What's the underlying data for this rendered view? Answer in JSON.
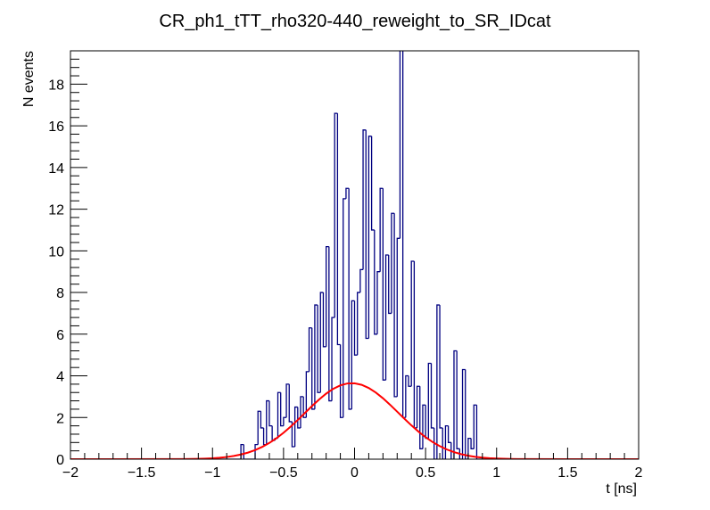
{
  "chart_data": {
    "type": "histogram",
    "title": "CR_ph1_tTT_rho320-440_reweight_to_SR_IDcat",
    "xlabel": "t [ns]",
    "ylabel": "N events",
    "color": "#000080",
    "bins": [
      -2,
      -1.98,
      -1.96,
      -1.94,
      -1.92,
      -1.9,
      -1.88,
      -1.86,
      -1.84,
      -1.82,
      -1.8,
      -1.78,
      -1.76,
      -1.74,
      -1.72,
      -1.7,
      -1.68,
      -1.66,
      -1.64,
      -1.62,
      -1.6,
      -1.58,
      -1.56,
      -1.54,
      -1.52,
      -1.5,
      -1.48,
      -1.46,
      -1.44,
      -1.42,
      -1.4,
      -1.38,
      -1.36,
      -1.34,
      -1.32,
      -1.3,
      -1.28,
      -1.26,
      -1.24,
      -1.22,
      -1.2,
      -1.18,
      -1.16,
      -1.14,
      -1.12,
      -1.1,
      -1.08,
      -1.06,
      -1.04,
      -1.02,
      -1,
      -0.98,
      -0.96,
      -0.94,
      -0.92,
      -0.9,
      -0.88,
      -0.86,
      -0.84,
      -0.82,
      -0.8,
      -0.78,
      -0.76,
      -0.74,
      -0.72,
      -0.7,
      -0.68,
      -0.66,
      -0.64,
      -0.62,
      -0.6,
      -0.58,
      -0.56,
      -0.54,
      -0.52,
      -0.5,
      -0.48,
      -0.46,
      -0.44,
      -0.42,
      -0.4,
      -0.38,
      -0.36,
      -0.34,
      -0.32,
      -0.3,
      -0.28,
      -0.26,
      -0.24,
      -0.22,
      -0.2,
      -0.18,
      -0.16,
      -0.14,
      -0.12,
      -0.1,
      -0.08,
      -0.06,
      -0.04,
      -0.02,
      0,
      0.02,
      0.04,
      0.06,
      0.08,
      0.1,
      0.12,
      0.14,
      0.16,
      0.18,
      0.2,
      0.22,
      0.24,
      0.26,
      0.28,
      0.3,
      0.32,
      0.34,
      0.36,
      0.38,
      0.4,
      0.42,
      0.44,
      0.46,
      0.48,
      0.5,
      0.52,
      0.54,
      0.56,
      0.58,
      0.6,
      0.62,
      0.64,
      0.66,
      0.68,
      0.7,
      0.72,
      0.74,
      0.76,
      0.78,
      0.8,
      0.82,
      0.84,
      0.86,
      0.88,
      0.9,
      0.92,
      0.94,
      0.96,
      0.98,
      1,
      1.02,
      1.04,
      1.06,
      1.08,
      1.1,
      1.12,
      1.14,
      1.16,
      1.18,
      1.2,
      1.22,
      1.24,
      1.26,
      1.28,
      1.3,
      1.32,
      1.34,
      1.36,
      1.38,
      1.4,
      1.42,
      1.44,
      1.46,
      1.48,
      1.5,
      1.52,
      1.54,
      1.56,
      1.58,
      1.6,
      1.62,
      1.64,
      1.66,
      1.68,
      1.7,
      1.72,
      1.74,
      1.76,
      1.78,
      1.8,
      1.82,
      1.84,
      1.86,
      1.88,
      1.9,
      1.92,
      1.94,
      1.96,
      1.98,
      2
    ],
    "counts": [
      0,
      0,
      0,
      0,
      0,
      0,
      0,
      0,
      0,
      0,
      0,
      0,
      0,
      0,
      0,
      0,
      0,
      0,
      0,
      0,
      0,
      0,
      0,
      0,
      0,
      0,
      0,
      0,
      0,
      0,
      0,
      0,
      0,
      0,
      0,
      0,
      0,
      0,
      0,
      0,
      0,
      0,
      0,
      0,
      0,
      0,
      0,
      0,
      0,
      0,
      0,
      0,
      0,
      0,
      0,
      0,
      0,
      0,
      0,
      0,
      0.7,
      0,
      0,
      0,
      0,
      0.7,
      2.3,
      1.5,
      0.7,
      2.8,
      1.6,
      0.9,
      1.0,
      3.2,
      1.6,
      2.0,
      3.6,
      1.8,
      0.6,
      2.5,
      1.5,
      3.0,
      2.0,
      4.2,
      6.3,
      2.4,
      7.4,
      3.2,
      8.0,
      5.4,
      10.2,
      2.8,
      6.8,
      16.6,
      5.5,
      2.0,
      12.5,
      13.0,
      2.4,
      7.6,
      5.0,
      8.0,
      9.1,
      15.8,
      5.8,
      15.5,
      11.0,
      6.0,
      9.0,
      13.0,
      3.8,
      9.8,
      7.0,
      11.8,
      3.0,
      10.6,
      20.5,
      2.0,
      4.0,
      3.5,
      9.5,
      1.5,
      3.5,
      0.5,
      2.6,
      1.0,
      4.6,
      1.5,
      0,
      7.4,
      1.5,
      0,
      1.6,
      0.8,
      0,
      5.2,
      0.5,
      0,
      4.3,
      0,
      1.0,
      0.5,
      2.6,
      0,
      0,
      0,
      0,
      0,
      0,
      0,
      0,
      0,
      0,
      0,
      0,
      0,
      0,
      0,
      0,
      0,
      0,
      0,
      0,
      0,
      0,
      0,
      0,
      0,
      0,
      0,
      0,
      0,
      0,
      0,
      0,
      0,
      0,
      0,
      0,
      0,
      0,
      0,
      0,
      0,
      0,
      0,
      0,
      0,
      0,
      0,
      0,
      0,
      0,
      0,
      0,
      0,
      0,
      0,
      0,
      0
    ],
    "fit": {
      "type": "line",
      "color": "#ff0000",
      "x": [
        -2,
        -1.2,
        -1.15,
        -1.1,
        -1.05,
        -1,
        -0.95,
        -0.9,
        -0.85,
        -0.8,
        -0.75,
        -0.7,
        -0.65,
        -0.6,
        -0.55,
        -0.5,
        -0.45,
        -0.4,
        -0.35,
        -0.3,
        -0.25,
        -0.2,
        -0.15,
        -0.1,
        -0.05,
        0,
        0.05,
        0.1,
        0.15,
        0.2,
        0.25,
        0.3,
        0.35,
        0.4,
        0.45,
        0.5,
        0.55,
        0.6,
        0.65,
        0.7,
        0.75,
        0.8,
        0.85,
        0.9,
        0.95,
        1,
        1.05,
        1.1,
        1.15,
        1.2,
        2
      ],
      "values": [
        0,
        0.006,
        0.01,
        0.017,
        0.028,
        0.044,
        0.069,
        0.104,
        0.154,
        0.224,
        0.316,
        0.437,
        0.59,
        0.779,
        1.005,
        1.267,
        1.561,
        1.881,
        2.214,
        2.547,
        2.863,
        3.146,
        3.377,
        3.544,
        3.635,
        3.643,
        3.569,
        3.416,
        3.196,
        2.923,
        2.612,
        2.281,
        1.947,
        1.624,
        1.324,
        1.055,
        0.821,
        0.625,
        0.465,
        0.338,
        0.24,
        0.167,
        0.113,
        0.075,
        0.049,
        0.031,
        0.019,
        0.011,
        0.007,
        0.004,
        0
      ]
    },
    "xlim": [
      -2,
      2
    ],
    "xticks": [
      {
        "value": -2,
        "label": "−2"
      },
      {
        "value": -1.5,
        "label": "−1.5"
      },
      {
        "value": -1,
        "label": "−1"
      },
      {
        "value": -0.5,
        "label": "−0.5"
      },
      0,
      0.5,
      1,
      1.5,
      2
    ],
    "ylim": [
      0,
      19.6
    ],
    "yticks": [
      0,
      2,
      4,
      6,
      8,
      10,
      12,
      14,
      16,
      18
    ]
  }
}
